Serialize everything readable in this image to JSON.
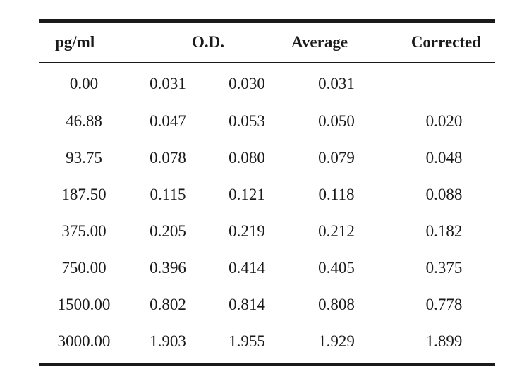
{
  "table": {
    "headers": {
      "concentration": "pg/ml",
      "od": "O.D.",
      "average": "Average",
      "corrected": "Corrected"
    },
    "rows": [
      {
        "conc": "0.00",
        "od1": "0.031",
        "od2": "0.030",
        "avg": "0.031",
        "corr": ""
      },
      {
        "conc": "46.88",
        "od1": "0.047",
        "od2": "0.053",
        "avg": "0.050",
        "corr": "0.020"
      },
      {
        "conc": "93.75",
        "od1": "0.078",
        "od2": "0.080",
        "avg": "0.079",
        "corr": "0.048"
      },
      {
        "conc": "187.50",
        "od1": "0.115",
        "od2": "0.121",
        "avg": "0.118",
        "corr": "0.088"
      },
      {
        "conc": "375.00",
        "od1": "0.205",
        "od2": "0.219",
        "avg": "0.212",
        "corr": "0.182"
      },
      {
        "conc": "750.00",
        "od1": "0.396",
        "od2": "0.414",
        "avg": "0.405",
        "corr": "0.375"
      },
      {
        "conc": "1500.00",
        "od1": "0.802",
        "od2": "0.814",
        "avg": "0.808",
        "corr": "0.778"
      },
      {
        "conc": "3000.00",
        "od1": "1.903",
        "od2": "1.955",
        "avg": "1.929",
        "corr": "1.899"
      }
    ]
  }
}
